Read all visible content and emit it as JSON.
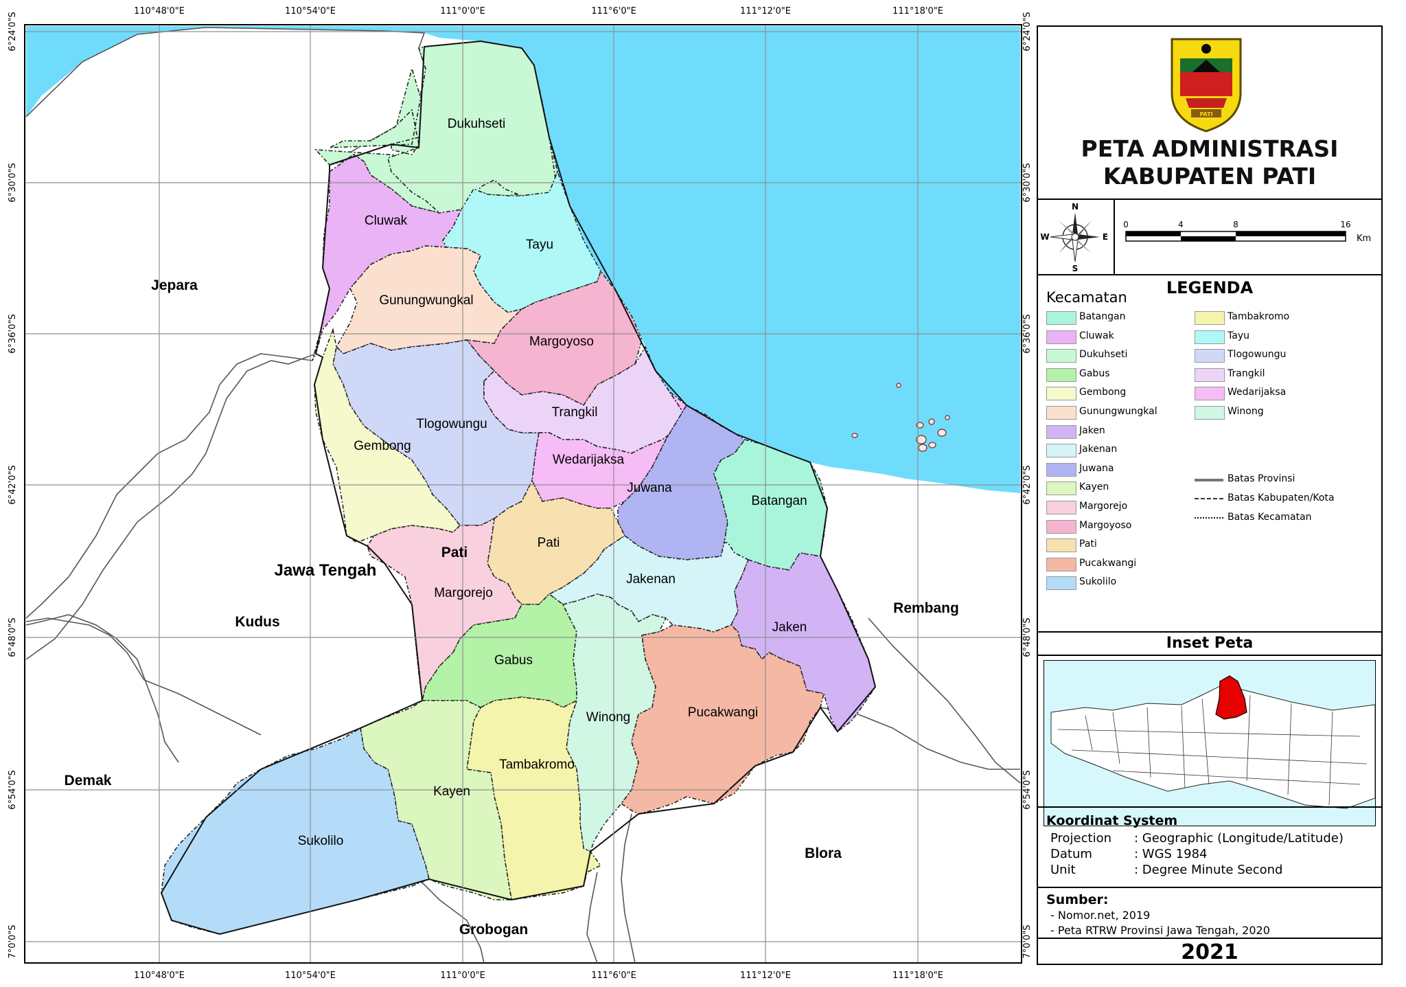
{
  "map": {
    "graticule": {
      "top_labels": [
        "110°48'0\"E",
        "110°54'0\"E",
        "111°0'0\"E",
        "111°6'0\"E",
        "111°12'0\"E",
        "111°18'0\"E"
      ],
      "bottom_labels": [
        "110°48'0\"E",
        "110°54'0\"E",
        "111°0'0\"E",
        "111°6'0\"E",
        "111°12'0\"E",
        "111°18'0\"E"
      ],
      "left_labels": [
        "6°24'0\"S",
        "6°30'0\"S",
        "6°36'0\"S",
        "6°42'0\"S",
        "6°48'0\"S",
        "6°54'0\"S",
        "7°0'0\"S"
      ],
      "right_labels": [
        "6°24'0\"S",
        "6°30'0\"S",
        "6°36'0\"S",
        "6°42'0\"S",
        "6°48'0\"S",
        "6°54'0\"S",
        "7°0'0\"S"
      ]
    },
    "colors": {
      "sea": "#6fdcfb",
      "Batangan": "#a8f5dc",
      "Cluwak": "#eab3f5",
      "Dukuhseti": "#c8f8d4",
      "Gabus": "#b4f2a8",
      "Gembong": "#f6f9cc",
      "Gunungwungkal": "#fbe0d0",
      "Jaken": "#d2b4f5",
      "Jakenan": "#d4f4f8",
      "Juwana": "#b0b4f3",
      "Kayen": "#dcf6c0",
      "Margorejo": "#f9d0de",
      "Margoyoso": "#f5b4d0",
      "Pati": "#f9e0b0",
      "Pucakwangi": "#f5b8a4",
      "Sukolilo": "#b4dcf8",
      "Tambakromo": "#f5f4ac",
      "Tayu": "#b0f8f8",
      "Tlogowungu": "#d0d8f8",
      "Trangkil": "#ecd4f8",
      "Wedarijaksa": "#f6bcf5",
      "Winong": "#d0f6e4"
    },
    "kecamatan_labels": [
      "Dukuhseti",
      "Cluwak",
      "Tayu",
      "Gunungwungkal",
      "Margoyoso",
      "Trangkil",
      "Tlogowungu",
      "Gembong",
      "Wedarijaksa",
      "Juwana",
      "Batangan",
      "Pati",
      "Margorejo",
      "Jakenan",
      "Jaken",
      "Gabus",
      "Winong",
      "Pucakwangi",
      "Tambakromo",
      "Kayen",
      "Sukolilo"
    ],
    "region_labels": {
      "jepara": "Jepara",
      "jawa_tengah": "Jawa Tengah",
      "pati_region": "Pati",
      "kudus": "Kudus",
      "demak": "Demak",
      "rembang": "Rembang",
      "blora": "Blora",
      "grobogan": "Grobogan"
    }
  },
  "panel": {
    "title_line1": "PETA ADMINISTRASI",
    "title_line2": "KABUPATEN PATI",
    "logo_band": "PATI",
    "compass": {
      "n": "N",
      "s": "S",
      "e": "E",
      "w": "W"
    },
    "scale": {
      "ticks": [
        "0",
        "4",
        "8",
        "16"
      ],
      "unit": "Km"
    },
    "legend_title": "LEGENDA",
    "legend_group": "Kecamatan",
    "legend_items_col1": [
      "Batangan",
      "Cluwak",
      "Dukuhseti",
      "Gabus",
      "Gembong",
      "Gunungwungkal",
      "Jaken",
      "Jakenan",
      "Juwana",
      "Kayen",
      "Margorejo",
      "Margoyoso",
      "Pati",
      "Pucakwangi",
      "Sukolilo"
    ],
    "legend_items_col2": [
      "Tambakromo",
      "Tayu",
      "Tlogowungu",
      "Trangkil",
      "Wedarijaksa",
      "Winong"
    ],
    "line_legend": [
      "Batas Provinsi",
      "Batas Kabupaten/Kota",
      "Batas Kecamatan"
    ],
    "inset_title": "Inset Peta",
    "coord_title": "Koordinat System",
    "coord_rows": [
      {
        "key": "Projection",
        "value": ": Geographic (Longitude/Latitude)"
      },
      {
        "key": "Datum",
        "value": ": WGS 1984"
      },
      {
        "key": "Unit",
        "value": ": Degree Minute Second"
      }
    ],
    "source_title": "Sumber:",
    "sources": [
      "- Nomor.net, 2019",
      "- Peta RTRW Provinsi Jawa Tengah, 2020"
    ],
    "year": "2021"
  }
}
